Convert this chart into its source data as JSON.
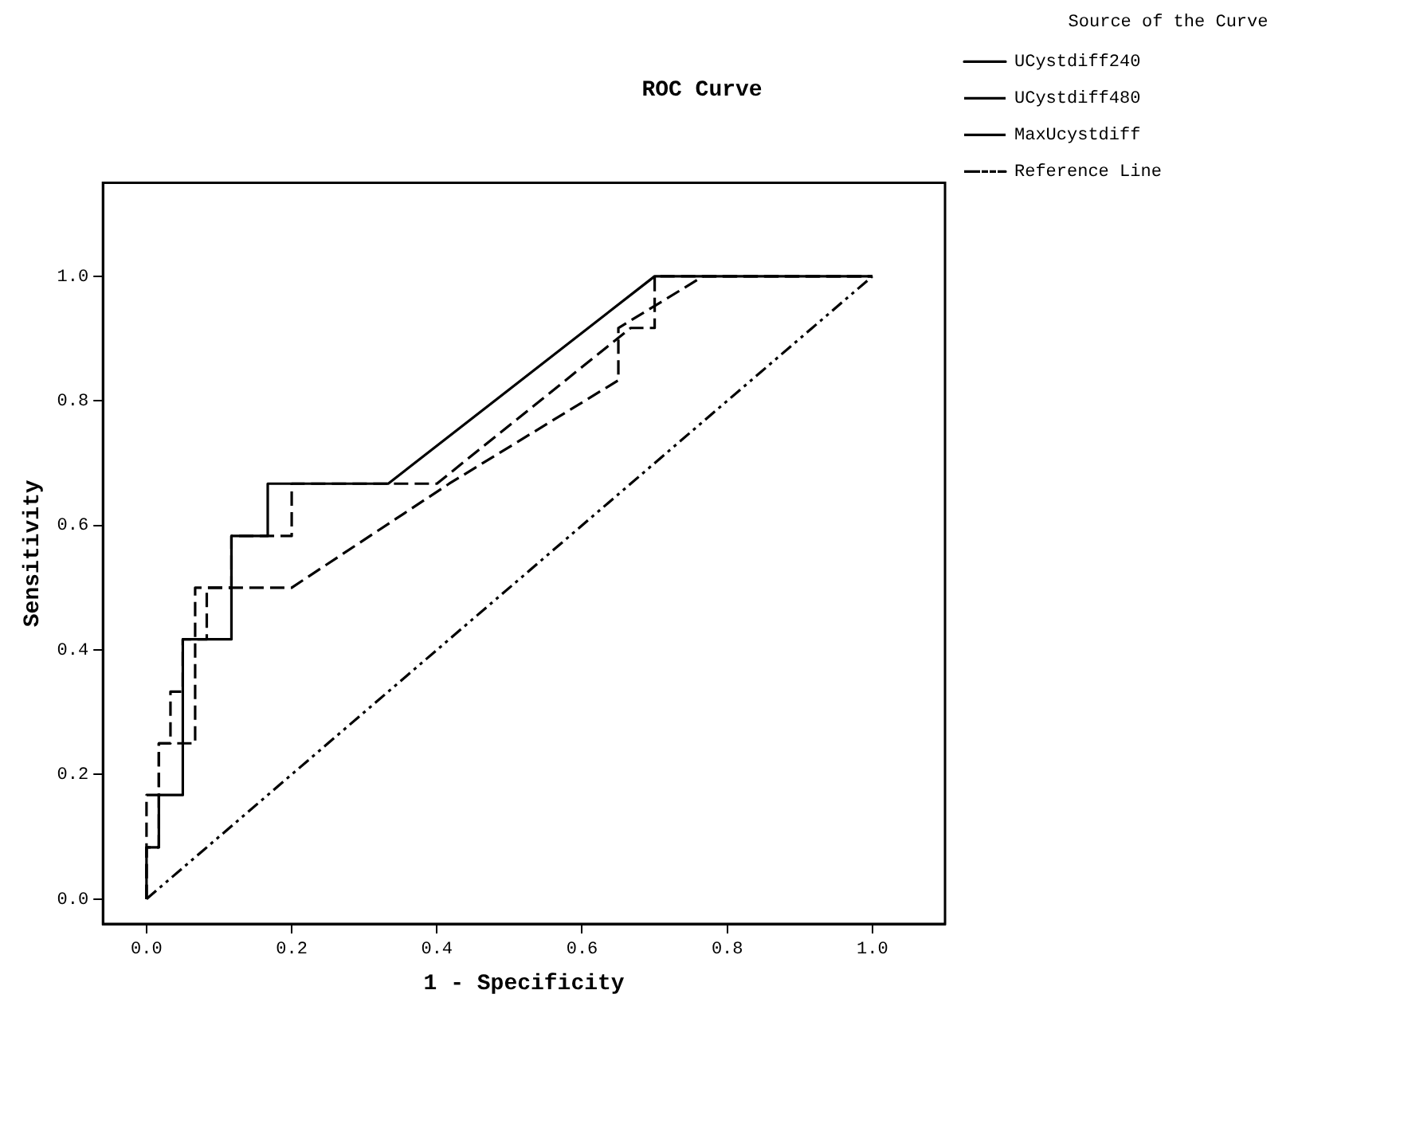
{
  "chart_data": {
    "type": "line",
    "title": "ROC Curve",
    "xlabel": "1 - Specificity",
    "ylabel": "Sensitivity",
    "legend_title": "Source of the Curve",
    "legend": "top right",
    "grid": false,
    "marker": "none",
    "xlim": [
      -0.06,
      1.1
    ],
    "ylim": [
      -0.04,
      1.15
    ],
    "xticks": [
      {
        "value": 0,
        "label": "0.0"
      },
      {
        "value": 0.2,
        "label": "0.2"
      },
      {
        "value": 0.4,
        "label": "0.4"
      },
      {
        "value": 0.6,
        "label": "0.6"
      },
      {
        "value": 0.8,
        "label": "0.8"
      },
      {
        "value": 1,
        "label": "1.0"
      }
    ],
    "yticks": [
      {
        "value": 0,
        "label": "0.0"
      },
      {
        "value": 0.2,
        "label": "0.2"
      },
      {
        "value": 0.4,
        "label": "0.4"
      },
      {
        "value": 0.6,
        "label": "0.6"
      },
      {
        "value": 0.8,
        "label": "0.8"
      },
      {
        "value": 1,
        "label": "1.0"
      }
    ],
    "series": [
      {
        "name": "UCystdiff240",
        "color": "#000000",
        "line_style": "solid",
        "x": [
          0,
          0,
          0.017,
          0.017,
          0.05,
          0.05,
          0.117,
          0.117,
          0.167,
          0.167,
          0.333,
          0.7,
          1
        ],
        "values": [
          0,
          0.083,
          0.083,
          0.167,
          0.167,
          0.417,
          0.417,
          0.583,
          0.583,
          0.667,
          0.667,
          1,
          1
        ]
      },
      {
        "name": "UCystdiff480",
        "color": "#000000",
        "line_style": "dashed",
        "x": [
          0,
          0,
          0.017,
          0.017,
          0.033,
          0.033,
          0.05,
          0.05,
          0.083,
          0.083,
          0.2,
          0.417,
          0.65,
          0.65,
          0.767,
          1
        ],
        "values": [
          0,
          0.167,
          0.167,
          0.25,
          0.25,
          0.333,
          0.333,
          0.417,
          0.417,
          0.5,
          0.5,
          0.667,
          0.833,
          0.917,
          1,
          1
        ]
      },
      {
        "name": "MaxUcystdiff",
        "color": "#000000",
        "line_style": "dashed",
        "x": [
          0,
          0,
          0.017,
          0.017,
          0.067,
          0.067,
          0.117,
          0.117,
          0.2,
          0.2,
          0.4,
          0.667,
          0.7,
          0.7,
          1
        ],
        "values": [
          0,
          0.083,
          0.083,
          0.25,
          0.25,
          0.5,
          0.5,
          0.583,
          0.583,
          0.667,
          0.667,
          0.917,
          0.917,
          1,
          1
        ]
      },
      {
        "name": "Reference Line",
        "color": "#000000",
        "line_style": "dotted",
        "x": [
          0,
          1
        ],
        "values": [
          0,
          1
        ]
      }
    ]
  }
}
